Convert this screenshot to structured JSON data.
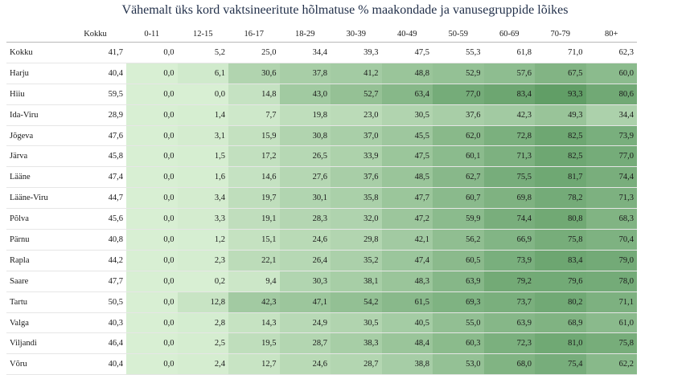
{
  "chart_data": {
    "type": "heatmap",
    "title": "Vähemalt üks kord vaktsineeritute hõlmatuse % maakondade ja vanusegruppide lõikes",
    "total_label": "Kokku",
    "columns": [
      "0-11",
      "12-15",
      "16-17",
      "18-29",
      "30-39",
      "40-49",
      "50-59",
      "60-69",
      "70-79",
      "80+"
    ],
    "rows": [
      {
        "name": "Kokku",
        "total": "41,7",
        "values": [
          "0,0",
          "5,2",
          "25,0",
          "34,4",
          "39,3",
          "47,5",
          "55,3",
          "61,8",
          "71,0",
          "62,3"
        ],
        "shaded": false
      },
      {
        "name": "Harju",
        "total": "40,4",
        "values": [
          "0,0",
          "6,1",
          "30,6",
          "37,8",
          "41,2",
          "48,8",
          "52,9",
          "57,6",
          "67,5",
          "60,0"
        ],
        "shaded": true
      },
      {
        "name": "Hiiu",
        "total": "59,5",
        "values": [
          "0,0",
          "0,0",
          "14,8",
          "43,0",
          "52,7",
          "63,4",
          "77,0",
          "83,4",
          "93,3",
          "80,6"
        ],
        "shaded": true
      },
      {
        "name": "Ida-Viru",
        "total": "28,9",
        "values": [
          "0,0",
          "1,4",
          "7,7",
          "19,8",
          "23,0",
          "30,5",
          "37,6",
          "42,3",
          "49,3",
          "34,4"
        ],
        "shaded": true
      },
      {
        "name": "Jõgeva",
        "total": "47,6",
        "values": [
          "0,0",
          "3,1",
          "15,9",
          "30,8",
          "37,0",
          "45,5",
          "62,0",
          "72,8",
          "82,5",
          "73,9"
        ],
        "shaded": true
      },
      {
        "name": "Järva",
        "total": "45,8",
        "values": [
          "0,0",
          "1,5",
          "17,2",
          "26,5",
          "33,9",
          "47,5",
          "60,1",
          "71,3",
          "82,5",
          "77,0"
        ],
        "shaded": true
      },
      {
        "name": "Lääne",
        "total": "47,4",
        "values": [
          "0,0",
          "1,6",
          "14,6",
          "27,6",
          "37,6",
          "48,5",
          "62,7",
          "75,5",
          "81,7",
          "74,4"
        ],
        "shaded": true
      },
      {
        "name": "Lääne-Viru",
        "total": "44,7",
        "values": [
          "0,0",
          "3,4",
          "19,7",
          "30,1",
          "35,8",
          "47,7",
          "60,7",
          "69,8",
          "78,2",
          "71,3"
        ],
        "shaded": true
      },
      {
        "name": "Põlva",
        "total": "45,6",
        "values": [
          "0,0",
          "3,3",
          "19,1",
          "28,3",
          "32,0",
          "47,2",
          "59,9",
          "74,4",
          "80,8",
          "68,3"
        ],
        "shaded": true
      },
      {
        "name": "Pärnu",
        "total": "40,8",
        "values": [
          "0,0",
          "1,2",
          "15,1",
          "24,6",
          "29,8",
          "42,1",
          "56,2",
          "66,9",
          "75,8",
          "70,4"
        ],
        "shaded": true
      },
      {
        "name": "Rapla",
        "total": "44,2",
        "values": [
          "0,0",
          "2,3",
          "22,1",
          "26,4",
          "35,2",
          "47,4",
          "60,5",
          "73,9",
          "83,4",
          "79,0"
        ],
        "shaded": true
      },
      {
        "name": "Saare",
        "total": "47,7",
        "values": [
          "0,0",
          "0,2",
          "9,4",
          "30,3",
          "38,1",
          "48,3",
          "63,9",
          "79,2",
          "79,6",
          "78,0"
        ],
        "shaded": true
      },
      {
        "name": "Tartu",
        "total": "50,5",
        "values": [
          "0,0",
          "12,8",
          "42,3",
          "47,1",
          "54,2",
          "61,5",
          "69,3",
          "73,7",
          "80,2",
          "71,1"
        ],
        "shaded": true
      },
      {
        "name": "Valga",
        "total": "40,3",
        "values": [
          "0,0",
          "2,8",
          "14,3",
          "24,9",
          "30,5",
          "40,5",
          "55,0",
          "63,9",
          "68,9",
          "61,0"
        ],
        "shaded": true
      },
      {
        "name": "Viljandi",
        "total": "46,4",
        "values": [
          "0,0",
          "2,5",
          "19,5",
          "28,7",
          "38,3",
          "48,4",
          "60,3",
          "72,3",
          "81,0",
          "75,8"
        ],
        "shaded": true
      },
      {
        "name": "Võru",
        "total": "40,4",
        "values": [
          "0,0",
          "2,4",
          "12,7",
          "24,6",
          "28,7",
          "38,8",
          "53,0",
          "68,0",
          "75,4",
          "62,2"
        ],
        "shaded": true
      }
    ],
    "value_range": [
      0,
      100
    ],
    "color_low": "#d8efd3",
    "color_high": "#58985e",
    "grid": false,
    "legend": "none"
  }
}
